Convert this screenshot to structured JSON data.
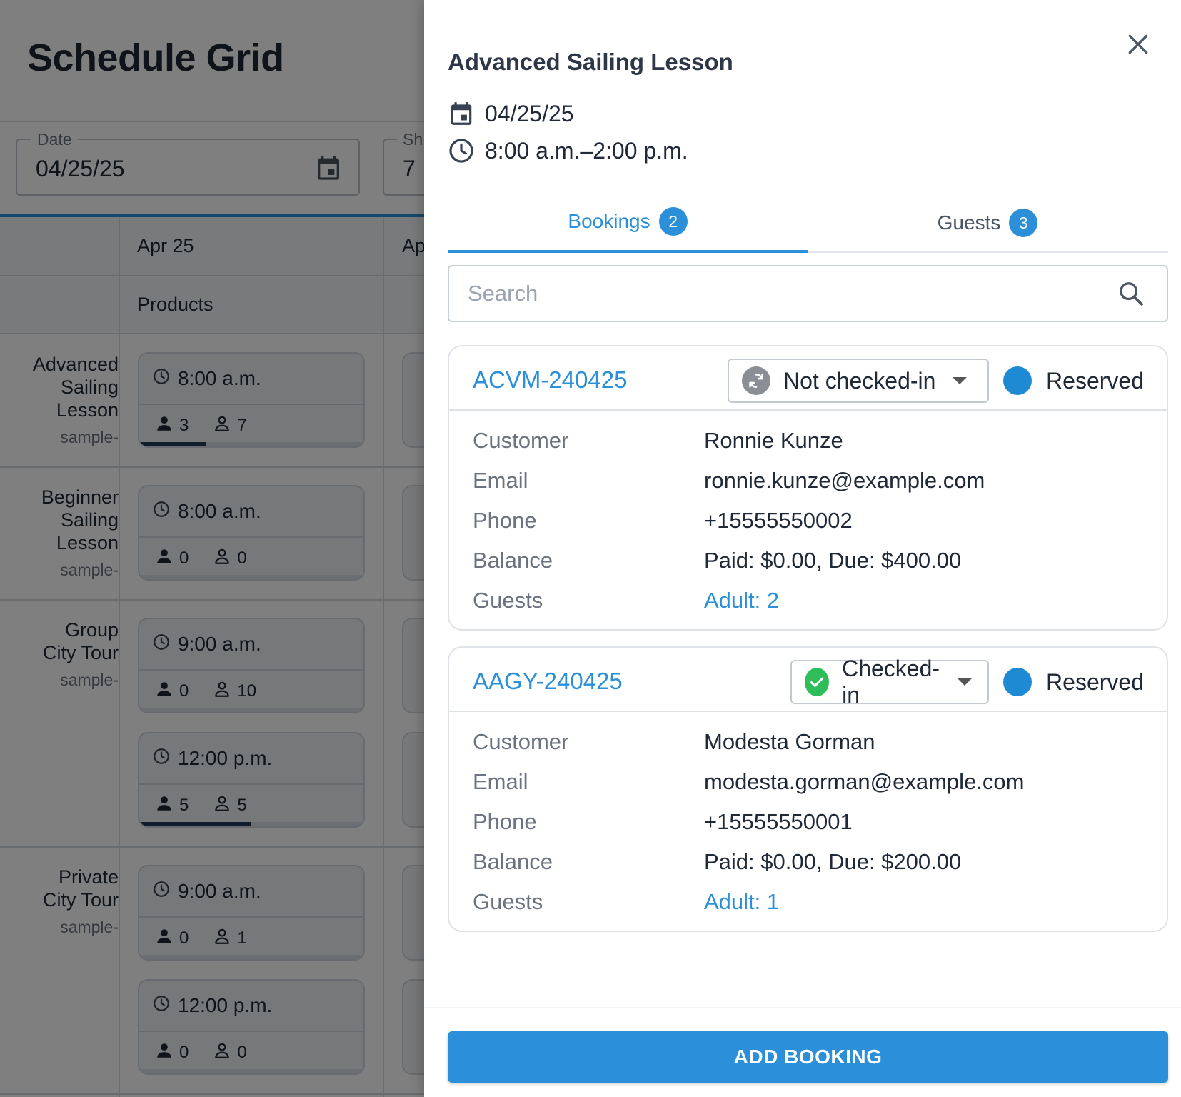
{
  "page": {
    "title": "Schedule Grid"
  },
  "filters": {
    "date_label": "Date",
    "date_value": "04/25/25",
    "show_label": "Sh",
    "show_value": "7"
  },
  "grid": {
    "day1": "Apr 25",
    "day2": "Ap",
    "products_header": "Products",
    "rows": [
      {
        "name_line1": "Advanced",
        "name_line2": "Sailing",
        "name_line3": "Lesson",
        "sub": "sample-"
      },
      {
        "name_line1": "Beginner",
        "name_line2": "Sailing",
        "name_line3": "Lesson",
        "sub": "sample-"
      },
      {
        "name_line1": "Group",
        "name_line2": "City Tour",
        "sub": "sample-"
      },
      {
        "name_line1": "Private",
        "name_line2": "City Tour",
        "sub": "sample-"
      }
    ],
    "slots": [
      {
        "time": "8:00 a.m.",
        "booked": "3",
        "capacity": "7",
        "fill": 0.3
      },
      {
        "time": "8:00 a.m.",
        "booked": "0",
        "capacity": "0",
        "fill": 0
      },
      {
        "time": "9:00 a.m.",
        "booked": "0",
        "capacity": "10",
        "fill": 0
      },
      {
        "time": "12:00 p.m.",
        "booked": "5",
        "capacity": "5",
        "fill": 0.5
      },
      {
        "time": "9:00 a.m.",
        "booked": "0",
        "capacity": "1",
        "fill": 0
      },
      {
        "time": "12:00 p.m.",
        "booked": "0",
        "capacity": "0",
        "fill": 0
      }
    ]
  },
  "drawer": {
    "title": "Advanced Sailing Lesson",
    "date": "04/25/25",
    "time_range": "8:00 a.m.–2:00 p.m.",
    "tabs": [
      {
        "label": "Bookings",
        "count": "2"
      },
      {
        "label": "Guests",
        "count": "3"
      }
    ],
    "search_placeholder": "Search",
    "labels": {
      "customer": "Customer",
      "email": "Email",
      "phone": "Phone",
      "balance": "Balance",
      "guests": "Guests"
    },
    "bookings": [
      {
        "id": "ACVM-240425",
        "checkin_status": "Not checked-in",
        "reservation_status": "Reserved",
        "customer": "Ronnie Kunze",
        "email": "ronnie.kunze@example.com",
        "phone": "+15555550002",
        "balance": "Paid: $0.00, Due: $400.00",
        "guests": "Adult: 2"
      },
      {
        "id": "AAGY-240425",
        "checkin_status": "Checked-in",
        "reservation_status": "Reserved",
        "customer": "Modesta Gorman",
        "email": "modesta.gorman@example.com",
        "phone": "+15555550001",
        "balance": "Paid: $0.00, Due: $200.00",
        "guests": "Adult: 1"
      }
    ],
    "add_button": "ADD BOOKING"
  },
  "colors": {
    "accent": "#2b90d9",
    "checked_in": "#2ebd59",
    "not_checked_in": "#8a8f96",
    "reserved_dot": "#1f8ad4"
  },
  "icons": {
    "date": "calendar-icon",
    "time": "clock-icon",
    "search": "search-icon",
    "close": "close-icon",
    "not_checked_in": "sync-icon",
    "checked_in": "check-circle-icon"
  }
}
